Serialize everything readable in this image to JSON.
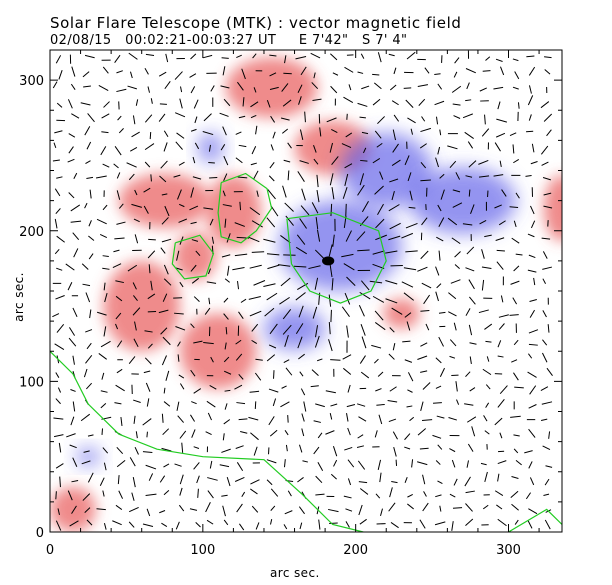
{
  "header": {
    "title": "Solar Flare Telescope (MTK) : vector magnetic field",
    "subtitle": "02/08/15   00:02:21-00:03:27 UT     E 7'42\"   S 7' 4\""
  },
  "chart_data": {
    "type": "heatmap",
    "title": "Solar Flare Telescope (MTK) : vector magnetic field",
    "subtitle": "02/08/15   00:02:21-00:03:27 UT     E 7'42\"   S 7' 4\"",
    "xlabel": "arc sec.",
    "ylabel": "arc sec.",
    "xlim": [
      0,
      335
    ],
    "ylim": [
      0,
      320
    ],
    "xticks": [
      0,
      100,
      200,
      300
    ],
    "yticks": [
      0,
      100,
      200,
      300
    ],
    "grid": false,
    "colors": {
      "positive_polarity": "#e85a5a",
      "negative_polarity": "#5a5ae8",
      "contour": "#22cc22",
      "umbra": "#000000",
      "vectors": "#000000"
    },
    "positive_regions": [
      {
        "x": 120,
        "y": 213,
        "rx": 18,
        "ry": 24
      },
      {
        "x": 95,
        "y": 183,
        "rx": 14,
        "ry": 16
      },
      {
        "x": 145,
        "y": 295,
        "rx": 30,
        "ry": 20
      },
      {
        "x": 185,
        "y": 255,
        "rx": 25,
        "ry": 18
      },
      {
        "x": 75,
        "y": 220,
        "rx": 30,
        "ry": 18
      },
      {
        "x": 110,
        "y": 120,
        "rx": 25,
        "ry": 25
      },
      {
        "x": 60,
        "y": 150,
        "rx": 25,
        "ry": 30
      },
      {
        "x": 15,
        "y": 15,
        "rx": 15,
        "ry": 15
      },
      {
        "x": 335,
        "y": 215,
        "rx": 12,
        "ry": 22
      },
      {
        "x": 230,
        "y": 145,
        "rx": 12,
        "ry": 10
      }
    ],
    "negative_regions": [
      {
        "x": 190,
        "y": 190,
        "rx": 40,
        "ry": 30
      },
      {
        "x": 220,
        "y": 240,
        "rx": 30,
        "ry": 25
      },
      {
        "x": 270,
        "y": 220,
        "rx": 35,
        "ry": 22
      },
      {
        "x": 160,
        "y": 135,
        "rx": 20,
        "ry": 14
      },
      {
        "x": 105,
        "y": 255,
        "rx": 8,
        "ry": 10
      },
      {
        "x": 25,
        "y": 50,
        "rx": 8,
        "ry": 6
      }
    ],
    "contours": [
      [
        [
          112,
          232
        ],
        [
          128,
          238
        ],
        [
          142,
          228
        ],
        [
          145,
          215
        ],
        [
          135,
          200
        ],
        [
          125,
          192
        ],
        [
          112,
          196
        ],
        [
          110,
          212
        ],
        [
          112,
          232
        ]
      ],
      [
        [
          82,
          192
        ],
        [
          98,
          197
        ],
        [
          107,
          185
        ],
        [
          102,
          170
        ],
        [
          88,
          168
        ],
        [
          80,
          178
        ],
        [
          82,
          192
        ]
      ],
      [
        [
          155,
          208
        ],
        [
          185,
          212
        ],
        [
          215,
          200
        ],
        [
          220,
          180
        ],
        [
          210,
          160
        ],
        [
          190,
          152
        ],
        [
          170,
          160
        ],
        [
          158,
          178
        ],
        [
          155,
          208
        ]
      ],
      [
        [
          0,
          120
        ],
        [
          15,
          105
        ],
        [
          25,
          85
        ],
        [
          45,
          65
        ],
        [
          70,
          55
        ],
        [
          100,
          50
        ],
        [
          140,
          48
        ],
        [
          165,
          25
        ],
        [
          185,
          5
        ],
        [
          205,
          0
        ]
      ],
      [
        [
          300,
          0
        ],
        [
          325,
          15
        ],
        [
          335,
          5
        ]
      ]
    ],
    "umbra": {
      "x": 182,
      "y": 180,
      "rx": 4,
      "ry": 3
    }
  }
}
